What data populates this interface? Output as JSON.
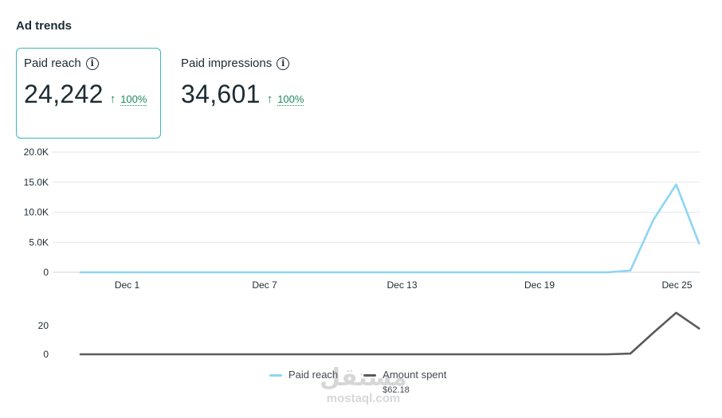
{
  "section_title": "Ad trends",
  "metrics": [
    {
      "label": "Paid reach",
      "info_icon": "info-icon",
      "value": "24,242",
      "trend_icon": "arrow-up-icon",
      "trend": "100%",
      "selected": true
    },
    {
      "label": "Paid impressions",
      "info_icon": "info-icon",
      "value": "34,601",
      "trend_icon": "arrow-up-icon",
      "trend": "100%",
      "selected": false
    }
  ],
  "colors": {
    "reach": "#8dd5f5",
    "spent": "#5b5b5b",
    "accent_border": "#3fb6b3",
    "trend_green": "#1d8a5c",
    "grid": "#e4e6eb"
  },
  "chart_data": [
    {
      "type": "line",
      "x": [
        "Nov 29",
        "Nov 30",
        "Dec 1",
        "Dec 2",
        "Dec 3",
        "Dec 4",
        "Dec 5",
        "Dec 6",
        "Dec 7",
        "Dec 8",
        "Dec 9",
        "Dec 10",
        "Dec 11",
        "Dec 12",
        "Dec 13",
        "Dec 14",
        "Dec 15",
        "Dec 16",
        "Dec 17",
        "Dec 18",
        "Dec 19",
        "Dec 20",
        "Dec 21",
        "Dec 22",
        "Dec 23",
        "Dec 24",
        "Dec 25",
        "Dec 26"
      ],
      "x_tick_labels": [
        "Dec 1",
        "Dec 7",
        "Dec 13",
        "Dec 19",
        "Dec 25"
      ],
      "y_tick_labels": [
        "0",
        "5.0K",
        "10.0K",
        "15.0K",
        "20.0K"
      ],
      "ylim": [
        0,
        20000
      ],
      "grid": true,
      "series": [
        {
          "name": "Paid reach",
          "values": [
            0,
            0,
            0,
            0,
            0,
            0,
            0,
            0,
            0,
            0,
            0,
            0,
            0,
            0,
            0,
            0,
            0,
            0,
            0,
            0,
            0,
            0,
            0,
            0,
            300,
            8700,
            14600,
            4800
          ]
        }
      ]
    },
    {
      "type": "line",
      "x": [
        "Nov 29",
        "Nov 30",
        "Dec 1",
        "Dec 2",
        "Dec 3",
        "Dec 4",
        "Dec 5",
        "Dec 6",
        "Dec 7",
        "Dec 8",
        "Dec 9",
        "Dec 10",
        "Dec 11",
        "Dec 12",
        "Dec 13",
        "Dec 14",
        "Dec 15",
        "Dec 16",
        "Dec 17",
        "Dec 18",
        "Dec 19",
        "Dec 20",
        "Dec 21",
        "Dec 22",
        "Dec 23",
        "Dec 24",
        "Dec 25",
        "Dec 26"
      ],
      "y_tick_labels": [
        "0",
        "20"
      ],
      "ylim": [
        0,
        20
      ],
      "grid": false,
      "series": [
        {
          "name": "Amount spent",
          "values": [
            0,
            0,
            0,
            0,
            0,
            0,
            0,
            0,
            0,
            0,
            0,
            0,
            0,
            0,
            0,
            0,
            0,
            0,
            0,
            0,
            0,
            0,
            0,
            0,
            0.5,
            15,
            29,
            18
          ]
        }
      ]
    }
  ],
  "legend": [
    {
      "label": "Paid reach",
      "sub": ""
    },
    {
      "label": "Amount spent",
      "sub": "$62.18"
    }
  ],
  "watermark": {
    "logo": "مستقل",
    "url": "mostaql.com"
  }
}
